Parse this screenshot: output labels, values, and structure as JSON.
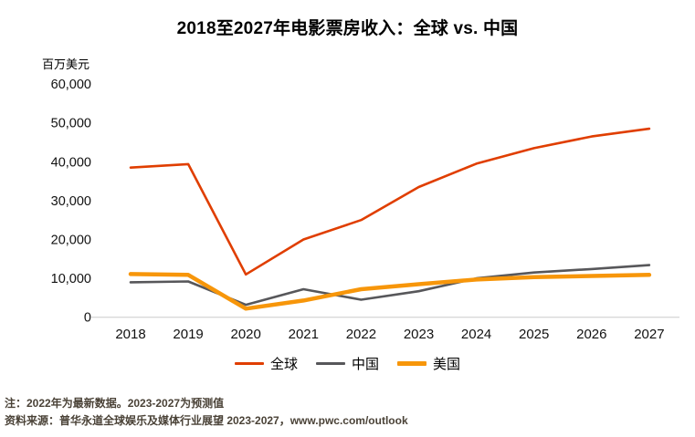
{
  "title": "2018至2027年电影票房收入：全球 vs. 中国",
  "y_axis_unit": "百万美元",
  "chart_data": {
    "type": "line",
    "title": "2018至2027年电影票房收入：全球 vs. 中国",
    "xlabel": "",
    "ylabel": "百万美元",
    "categories": [
      "2018",
      "2019",
      "2020",
      "2021",
      "2022",
      "2023",
      "2024",
      "2025",
      "2026",
      "2027"
    ],
    "series": [
      {
        "name": "全球",
        "color": "#e03e00",
        "width": 2.6,
        "values": [
          38500,
          39400,
          11000,
          20000,
          25000,
          33500,
          39500,
          43500,
          46500,
          48500
        ]
      },
      {
        "name": "中国",
        "color": "#57575a",
        "width": 2.6,
        "values": [
          9000,
          9200,
          3200,
          7200,
          4500,
          6700,
          10000,
          11500,
          12400,
          13400
        ]
      },
      {
        "name": "美国",
        "color": "#f7960a",
        "width": 4.5,
        "values": [
          11100,
          10900,
          2200,
          4300,
          7200,
          8500,
          9700,
          10300,
          10600,
          10900
        ]
      }
    ],
    "ylim": [
      0,
      60000
    ],
    "yticks": [
      {
        "value": 0,
        "label": "0"
      },
      {
        "value": 10000,
        "label": "10,000"
      },
      {
        "value": 20000,
        "label": "20,000"
      },
      {
        "value": 30000,
        "label": "30,000"
      },
      {
        "value": 40000,
        "label": "40,000"
      },
      {
        "value": 50000,
        "label": "50,000"
      },
      {
        "value": 60000,
        "label": "60,000"
      }
    ],
    "grid": false,
    "legend_position": "bottom"
  },
  "notes": {
    "line1": "注：2022年为最新数据。2023-2027为预测值",
    "line2": "资料来源：普华永道全球娱乐及媒体行业展望 2023-2027，www.pwc.com/outlook"
  }
}
